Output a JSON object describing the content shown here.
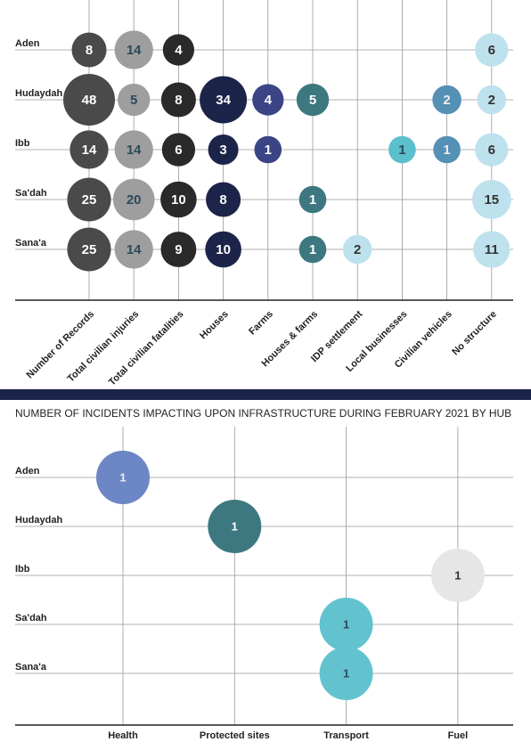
{
  "chart_data": [
    {
      "type": "bubble-grid",
      "categories": [
        "Aden",
        "Hudaydah",
        "Ibb",
        "Sa'dah",
        "Sana'a"
      ],
      "series": [
        {
          "name": "Number of Records",
          "color": "#4a4a4a",
          "values": [
            8,
            48,
            14,
            25,
            25
          ]
        },
        {
          "name": "Total civilian injuries",
          "color": "#9e9e9e",
          "values": [
            14,
            5,
            14,
            20,
            14
          ]
        },
        {
          "name": "Total civilian fatalities",
          "color": "#2a2a2a",
          "values": [
            4,
            8,
            6,
            10,
            9
          ]
        },
        {
          "name": "Houses",
          "color": "#1c2449",
          "values": [
            null,
            34,
            3,
            8,
            10
          ]
        },
        {
          "name": "Farms",
          "color": "#3b4585",
          "values": [
            null,
            4,
            1,
            null,
            null
          ]
        },
        {
          "name": "Houses & farms",
          "color": "#3d7880",
          "values": [
            null,
            5,
            null,
            1,
            1
          ]
        },
        {
          "name": "IDP settlement",
          "color": "#bde2ee",
          "values": [
            null,
            null,
            null,
            null,
            2
          ]
        },
        {
          "name": "Local businesses",
          "color": "#5cbfcc",
          "values": [
            null,
            null,
            1,
            null,
            null
          ]
        },
        {
          "name": "Civilian vehicles",
          "color": "#5590b5",
          "values": [
            null,
            2,
            1,
            null,
            null
          ]
        },
        {
          "name": "No structure",
          "color": "#bde2ee",
          "values": [
            6,
            2,
            6,
            15,
            11
          ]
        }
      ]
    },
    {
      "type": "bubble-grid",
      "title": "NUMBER OF INCIDENTS IMPACTING UPON INFRASTRUCTURE DURING FEBRUARY 2021 BY HUB",
      "categories": [
        "Aden",
        "Hudaydah",
        "Ibb",
        "Sa'dah",
        "Sana'a"
      ],
      "series": [
        {
          "name": "Health",
          "color": "#6d86c6",
          "values": [
            1,
            null,
            null,
            null,
            null
          ]
        },
        {
          "name": "Protected sites",
          "color": "#3d7880",
          "values": [
            null,
            1,
            null,
            null,
            null
          ]
        },
        {
          "name": "Transport",
          "color": "#62c3cf",
          "values": [
            null,
            null,
            null,
            1,
            1
          ]
        },
        {
          "name": "Fuel",
          "color": "#e6e6e6",
          "values": [
            null,
            null,
            1,
            null,
            null
          ]
        }
      ]
    }
  ]
}
